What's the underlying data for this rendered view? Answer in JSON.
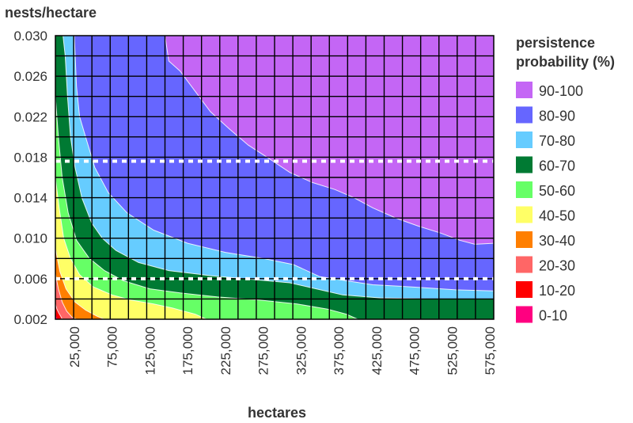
{
  "chart_data": {
    "type": "heatmap",
    "xlabel": "hectares",
    "ylabel": "nests/hectare",
    "xlim": [
      0,
      580000
    ],
    "ylim": [
      0.002,
      0.03
    ],
    "x_ticks": [
      {
        "value": 25000,
        "label": "25,000"
      },
      {
        "value": 75000,
        "label": "75,000"
      },
      {
        "value": 125000,
        "label": "125,000"
      },
      {
        "value": 175000,
        "label": "175,000"
      },
      {
        "value": 225000,
        "label": "225,000"
      },
      {
        "value": 275000,
        "label": "275,000"
      },
      {
        "value": 325000,
        "label": "325,000"
      },
      {
        "value": 375000,
        "label": "375,000"
      },
      {
        "value": 425000,
        "label": "425,000"
      },
      {
        "value": 475000,
        "label": "475,000"
      },
      {
        "value": 525000,
        "label": "525,000"
      },
      {
        "value": 575000,
        "label": "575,000"
      }
    ],
    "y_ticks": [
      {
        "value": 0.03,
        "label": "0.030"
      },
      {
        "value": 0.026,
        "label": "0.026"
      },
      {
        "value": 0.022,
        "label": "0.022"
      },
      {
        "value": 0.018,
        "label": "0.018"
      },
      {
        "value": 0.014,
        "label": "0.014"
      },
      {
        "value": 0.01,
        "label": "0.010"
      },
      {
        "value": 0.006,
        "label": "0.006"
      },
      {
        "value": 0.002,
        "label": "0.002"
      }
    ],
    "grid": true,
    "reference_lines_y": [
      0.0176,
      0.006
    ],
    "legend": {
      "title_lines": [
        "persistence",
        "probability (%)"
      ],
      "placement": "right",
      "entries": [
        {
          "label": "90-100",
          "color": "#c466f5"
        },
        {
          "label": "80-90",
          "color": "#6666ff"
        },
        {
          "label": "70-80",
          "color": "#66ccff"
        },
        {
          "label": "60-70",
          "color": "#007a33"
        },
        {
          "label": "50-60",
          "color": "#66ff66"
        },
        {
          "label": "40-50",
          "color": "#ffff66"
        },
        {
          "label": "30-40",
          "color": "#ff7f00"
        },
        {
          "label": "20-30",
          "color": "#ff6666"
        },
        {
          "label": "10-20",
          "color": "#ff0000"
        },
        {
          "label": "0-10",
          "color": "#ff0080"
        }
      ]
    },
    "contours": [
      {
        "band": "10-20",
        "boundary": [
          [
            0,
            0.0035
          ],
          [
            2000,
            0.003
          ],
          [
            4500,
            0.0026
          ],
          [
            7000,
            0.0023
          ],
          [
            9000,
            0.002
          ]
        ]
      },
      {
        "band": "20-30",
        "boundary": [
          [
            0,
            0.0065
          ],
          [
            4000,
            0.005
          ],
          [
            9000,
            0.0037
          ],
          [
            15000,
            0.0028
          ],
          [
            22000,
            0.0022
          ],
          [
            28000,
            0.002
          ]
        ]
      },
      {
        "band": "30-40",
        "boundary": [
          [
            0,
            0.009
          ],
          [
            6000,
            0.0067
          ],
          [
            14000,
            0.005
          ],
          [
            26000,
            0.0037
          ],
          [
            40000,
            0.0029
          ],
          [
            55000,
            0.0023
          ],
          [
            65000,
            0.002
          ]
        ]
      },
      {
        "band": "40-50",
        "boundary": [
          [
            0,
            0.016
          ],
          [
            5000,
            0.013
          ],
          [
            11000,
            0.01
          ],
          [
            20000,
            0.008
          ],
          [
            32000,
            0.0064
          ],
          [
            50000,
            0.0052
          ],
          [
            75000,
            0.0044
          ],
          [
            100000,
            0.0039
          ],
          [
            130000,
            0.0035
          ],
          [
            155000,
            0.0031
          ],
          [
            170000,
            0.0028
          ],
          [
            185000,
            0.0025
          ],
          [
            200000,
            0.002
          ]
        ]
      },
      {
        "band": "50-60",
        "boundary": [
          [
            0,
            0.024
          ],
          [
            4000,
            0.02
          ],
          [
            9000,
            0.016
          ],
          [
            17000,
            0.0125
          ],
          [
            28000,
            0.0098
          ],
          [
            45000,
            0.008
          ],
          [
            65000,
            0.0068
          ],
          [
            90000,
            0.0058
          ],
          [
            125000,
            0.005
          ],
          [
            165000,
            0.0046
          ],
          [
            215000,
            0.0042
          ],
          [
            270000,
            0.0039
          ],
          [
            320000,
            0.0035
          ],
          [
            360000,
            0.003
          ],
          [
            385000,
            0.0025
          ],
          [
            400000,
            0.002
          ]
        ]
      },
      {
        "band": "60-70",
        "boundary": [
          [
            10000,
            0.03
          ],
          [
            13000,
            0.028
          ],
          [
            16000,
            0.024
          ],
          [
            20000,
            0.02
          ],
          [
            26000,
            0.017
          ],
          [
            35000,
            0.014
          ],
          [
            48000,
            0.0115
          ],
          [
            62000,
            0.01
          ],
          [
            80000,
            0.0088
          ],
          [
            110000,
            0.0076
          ],
          [
            150000,
            0.0068
          ],
          [
            205000,
            0.0063
          ],
          [
            265000,
            0.0059
          ],
          [
            310000,
            0.0056
          ],
          [
            345000,
            0.005
          ],
          [
            380000,
            0.0044
          ],
          [
            430000,
            0.0041
          ],
          [
            500000,
            0.004
          ],
          [
            580000,
            0.004
          ]
        ]
      },
      {
        "band": "70-80",
        "boundary": [
          [
            25000,
            0.03
          ],
          [
            28000,
            0.025
          ],
          [
            32000,
            0.022
          ],
          [
            40000,
            0.02
          ],
          [
            52000,
            0.017
          ],
          [
            70000,
            0.0145
          ],
          [
            95000,
            0.0125
          ],
          [
            130000,
            0.0108
          ],
          [
            175000,
            0.0095
          ],
          [
            225000,
            0.0086
          ],
          [
            275000,
            0.008
          ],
          [
            315000,
            0.0074
          ],
          [
            350000,
            0.0062
          ],
          [
            385000,
            0.0058
          ],
          [
            420000,
            0.0054
          ],
          [
            470000,
            0.0052
          ],
          [
            530000,
            0.0049
          ],
          [
            580000,
            0.0048
          ]
        ]
      },
      {
        "band": "80-90",
        "boundary": [
          [
            145000,
            0.03
          ],
          [
            150000,
            0.0275
          ],
          [
            165000,
            0.0265
          ],
          [
            185000,
            0.0245
          ],
          [
            205000,
            0.0225
          ],
          [
            230000,
            0.0208
          ],
          [
            255000,
            0.0192
          ],
          [
            280000,
            0.018
          ],
          [
            310000,
            0.0165
          ],
          [
            340000,
            0.0155
          ],
          [
            370000,
            0.0148
          ],
          [
            395000,
            0.014
          ],
          [
            420000,
            0.013
          ],
          [
            450000,
            0.012
          ],
          [
            480000,
            0.0112
          ],
          [
            510000,
            0.0105
          ],
          [
            535000,
            0.0098
          ],
          [
            555000,
            0.0094
          ],
          [
            580000,
            0.0095
          ]
        ]
      }
    ]
  }
}
